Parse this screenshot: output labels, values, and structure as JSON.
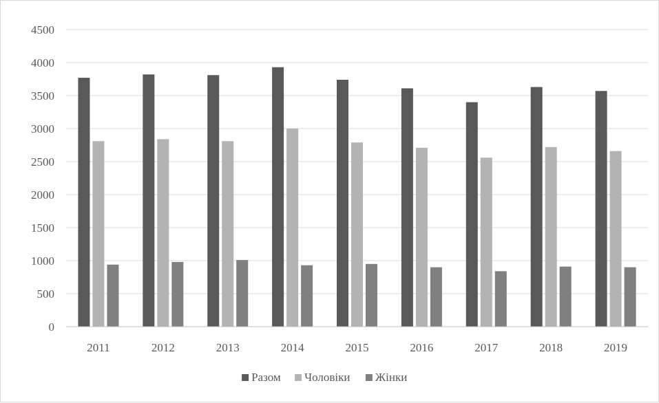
{
  "chart_data": {
    "type": "bar",
    "title": "",
    "xlabel": "",
    "ylabel": "",
    "categories": [
      "2011",
      "2012",
      "2013",
      "2014",
      "2015",
      "2016",
      "2017",
      "2018",
      "2019"
    ],
    "series": [
      {
        "name": "Разом",
        "color": "#595959",
        "values": [
          3770,
          3820,
          3810,
          3930,
          3740,
          3610,
          3400,
          3630,
          3570
        ]
      },
      {
        "name": "Чоловіки",
        "color": "#b3b3b3",
        "values": [
          2810,
          2840,
          2810,
          3000,
          2790,
          2710,
          2560,
          2720,
          2660
        ]
      },
      {
        "name": "Жінки",
        "color": "#808080",
        "values": [
          940,
          980,
          1010,
          930,
          950,
          900,
          840,
          910,
          900
        ]
      }
    ],
    "ylim": [
      0,
      4500
    ],
    "yticks": [
      0,
      500,
      1000,
      1500,
      2000,
      2500,
      3000,
      3500,
      4000,
      4500
    ],
    "grid": true,
    "legend": "bottom-center"
  }
}
